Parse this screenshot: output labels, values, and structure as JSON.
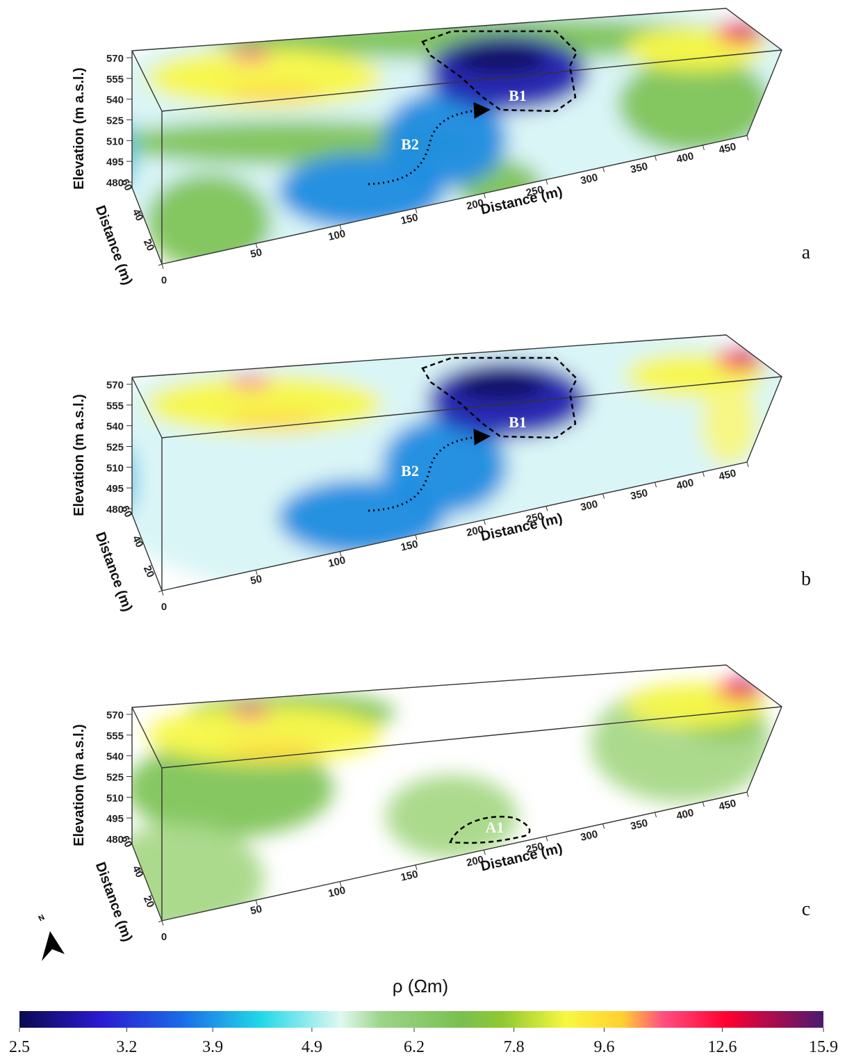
{
  "panels": [
    {
      "label": "a",
      "annotations": [
        "B1",
        "B2"
      ]
    },
    {
      "label": "b",
      "annotations": [
        "B1",
        "B2"
      ]
    },
    {
      "label": "c",
      "annotations": [
        "A1"
      ]
    }
  ],
  "axes": {
    "elevation_label": "Elevation (m a.s.l.)",
    "elevation_ticks": [
      480,
      495,
      510,
      525,
      540,
      555,
      570
    ],
    "distance_label": "Distance (m)",
    "distance_ticks": [
      0,
      50,
      100,
      150,
      200,
      250,
      300,
      350,
      400,
      450
    ],
    "width_label": "Distance (m)",
    "width_ticks": [
      0,
      20,
      40,
      60
    ]
  },
  "north": "N",
  "colorbar": {
    "label": "ρ (Ωm)",
    "lim": [
      2.5,
      15.9
    ],
    "ticks": [
      2.5,
      3.2,
      3.9,
      4.9,
      6.2,
      7.8,
      9.6,
      12.6,
      15.9
    ],
    "log": true
  }
}
